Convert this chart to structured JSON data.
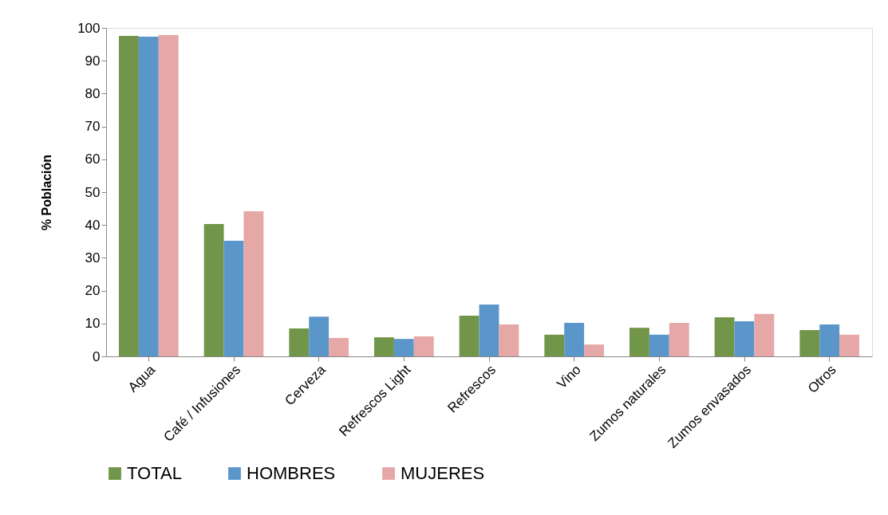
{
  "chart_data": {
    "type": "bar",
    "ylabel": "% Población",
    "categories": [
      "Agua",
      "Café / Infusiones",
      "Cerveza",
      "Refrescos Light",
      "Refrescos",
      "Vino",
      "Zumos naturales",
      "Zumos envasados",
      "Otros"
    ],
    "series": [
      {
        "name": "TOTAL",
        "color": "#71964a",
        "values": [
          97.6,
          40.3,
          8.5,
          5.8,
          12.4,
          6.6,
          8.7,
          11.9,
          8.0
        ]
      },
      {
        "name": "HOMBRES",
        "color": "#5b96cb",
        "values": [
          97.3,
          35.2,
          12.1,
          5.3,
          15.8,
          10.2,
          6.6,
          10.7,
          9.7
        ]
      },
      {
        "name": "MUJERES",
        "color": "#e6a7a7",
        "values": [
          97.8,
          44.2,
          5.6,
          6.1,
          9.7,
          3.6,
          10.2,
          12.9,
          6.6
        ]
      }
    ],
    "ylim": [
      0,
      100
    ],
    "yticks": [
      0,
      10,
      20,
      30,
      40,
      50,
      60,
      70,
      80,
      90,
      100
    ],
    "grid": false,
    "legend": "bottom"
  }
}
